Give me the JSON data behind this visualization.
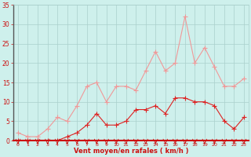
{
  "x": [
    0,
    1,
    2,
    3,
    4,
    5,
    6,
    7,
    8,
    9,
    10,
    11,
    12,
    13,
    14,
    15,
    16,
    17,
    18,
    19,
    20,
    21,
    22,
    23
  ],
  "wind_mean": [
    0,
    0,
    0,
    0,
    0,
    1,
    2,
    4,
    7,
    4,
    4,
    5,
    8,
    8,
    9,
    7,
    11,
    11,
    10,
    10,
    9,
    5,
    3,
    6
  ],
  "wind_gust": [
    2,
    1,
    1,
    3,
    6,
    5,
    9,
    14,
    15,
    10,
    14,
    14,
    13,
    18,
    23,
    18,
    20,
    32,
    20,
    24,
    19,
    14,
    14,
    16
  ],
  "bg_color": "#cef0ec",
  "grid_color": "#aacfcc",
  "mean_color": "#dd2222",
  "gust_color": "#f09898",
  "tick_color": "#cc1111",
  "xlabel": "Vent moyen/en rafales ( km/h )",
  "ylim": [
    0,
    35
  ],
  "yticks": [
    0,
    5,
    10,
    15,
    20,
    25,
    30,
    35
  ],
  "marker_size": 2.5,
  "line_width": 0.8
}
